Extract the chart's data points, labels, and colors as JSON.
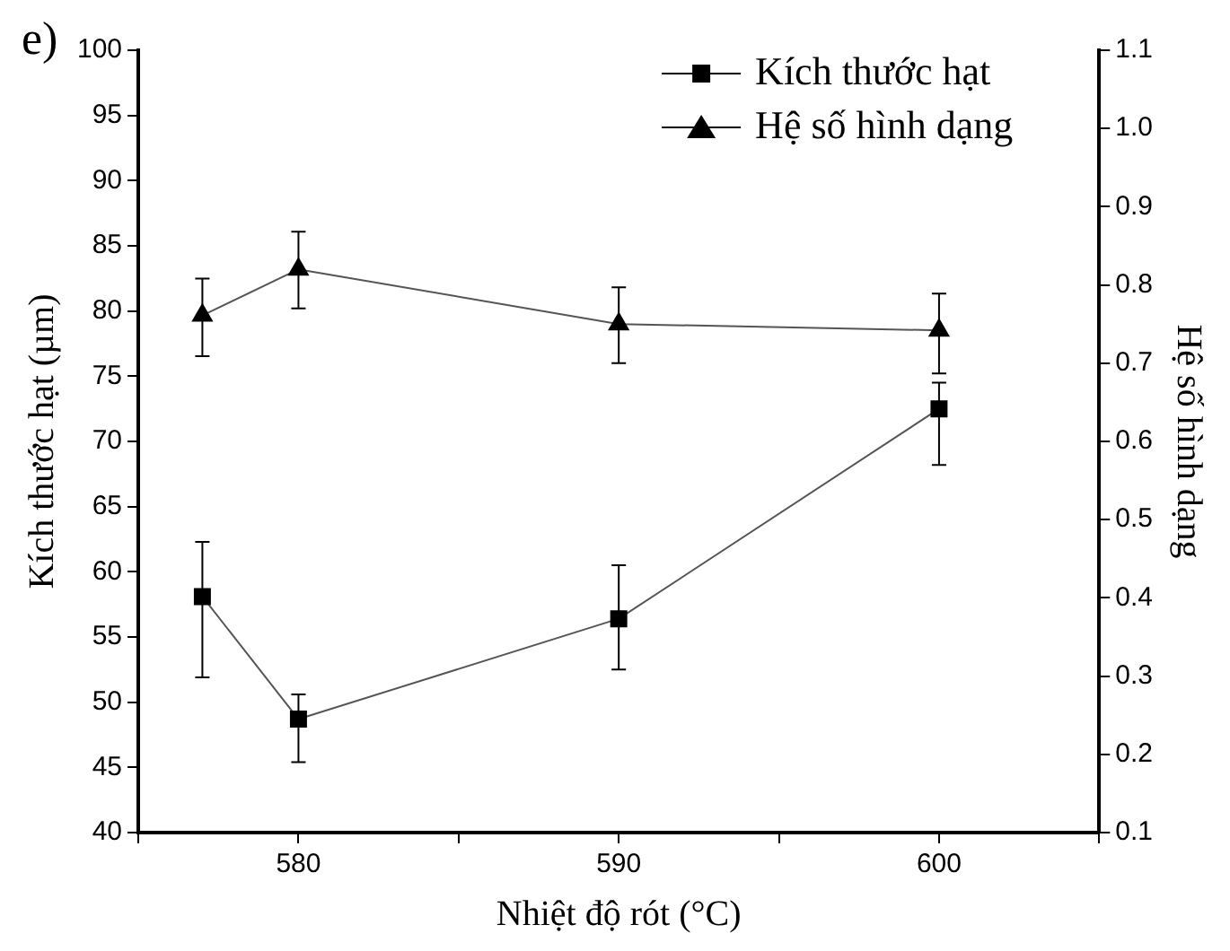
{
  "chart_data": {
    "type": "line",
    "title": "e)",
    "xlabel": "Nhiệt độ rót (°C)",
    "ylabel": "Kích thước hạt (µm)",
    "y2label": "Hệ số hình dạng",
    "x": [
      577,
      580,
      590,
      600
    ],
    "series": [
      {
        "name": "Kích thước hạt",
        "color": "#000000",
        "marker": "square",
        "values": [
          58.1,
          48.7,
          56.4,
          72.5
        ],
        "errors": [
          [
            51.9,
            62.3
          ],
          [
            45.4,
            50.6
          ],
          [
            52.5,
            60.5
          ],
          [
            68.2,
            74.5
          ]
        ]
      },
      {
        "name": "Hệ số hình dạng",
        "color": "#000000",
        "marker": "triangle",
        "axis": "y2",
        "values": [
          0.761,
          0.82,
          0.75,
          0.742
        ],
        "errors": [
          [
            0.709,
            0.808
          ],
          [
            0.77,
            0.868
          ],
          [
            0.7,
            0.797
          ],
          [
            0.687,
            0.789
          ]
        ]
      }
    ],
    "xlim": [
      575,
      605
    ],
    "xticks": [
      {
        "value": 575,
        "label": null
      },
      580,
      {
        "value": 585,
        "label": null
      },
      590,
      {
        "value": 595,
        "label": null
      },
      600,
      {
        "value": 605,
        "label": null
      }
    ],
    "ylim": [
      40,
      100
    ],
    "yticks": [
      40,
      45,
      50,
      55,
      60,
      65,
      70,
      75,
      80,
      85,
      90,
      95,
      100
    ],
    "y2lim": [
      0.1,
      1.1
    ],
    "y2ticks": [
      0.1,
      0.2,
      0.3,
      0.4,
      0.5,
      0.6,
      0.7,
      0.8,
      0.9,
      {
        "value": 1,
        "label": "1.0"
      },
      1.1
    ],
    "legend": "top right",
    "grid": false,
    "line_style": "solid"
  }
}
